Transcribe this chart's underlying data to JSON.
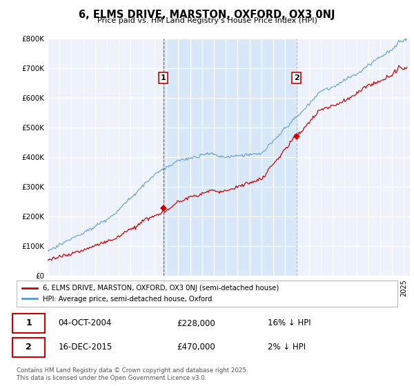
{
  "title": "6, ELMS DRIVE, MARSTON, OXFORD, OX3 0NJ",
  "subtitle": "Price paid vs. HM Land Registry's House Price Index (HPI)",
  "line1_color": "#cc0000",
  "line2_color": "#5599cc",
  "sale1_date_label": "04-OCT-2004",
  "sale1_price": 228000,
  "sale1_hpi_diff": "16% ↓ HPI",
  "sale2_date_label": "16-DEC-2015",
  "sale2_price": 470000,
  "sale2_hpi_diff": "2% ↓ HPI",
  "sale1_year": 2004.75,
  "sale2_year": 2015.96,
  "legend_label1": "6, ELMS DRIVE, MARSTON, OXFORD, OX3 0NJ (semi-detached house)",
  "legend_label2": "HPI: Average price, semi-detached house, Oxford",
  "footer": "Contains HM Land Registry data © Crown copyright and database right 2025.\nThis data is licensed under the Open Government Licence v3.0.",
  "ylim_max": 800000,
  "shade_color": "#d8e8f8",
  "vline_color": "#cc0000"
}
